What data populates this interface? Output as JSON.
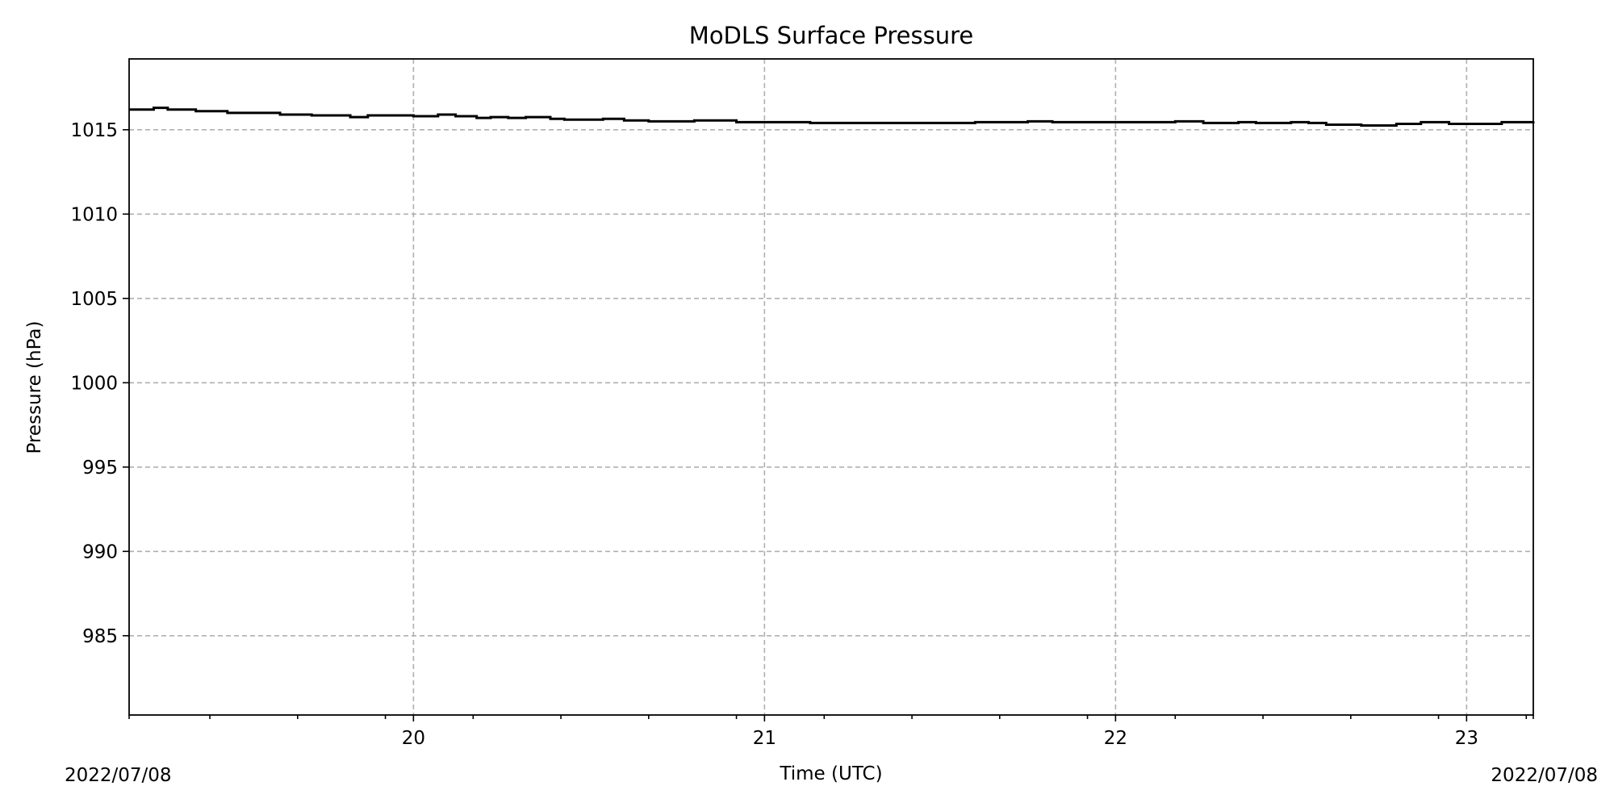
{
  "chart_data": {
    "type": "line",
    "title": "MoDLS Surface Pressure",
    "xlabel": "Time (UTC)",
    "ylabel": "Pressure (hPa)",
    "date_left": "2022/07/08",
    "date_right": "2022/07/08",
    "xlim": [
      19.19,
      23.19
    ],
    "ylim": [
      980.3,
      1019.2
    ],
    "x_ticks": [
      {
        "value": 20,
        "label": "20"
      },
      {
        "value": 21,
        "label": "21"
      },
      {
        "value": 22,
        "label": "22"
      },
      {
        "value": 23,
        "label": "23"
      }
    ],
    "x_minor_ticks": [
      19.19,
      19.42,
      19.67,
      19.92,
      20.17,
      20.42,
      20.67,
      20.92,
      21.17,
      21.42,
      21.67,
      21.92,
      22.17,
      22.42,
      22.67,
      22.92,
      23.17,
      23.19
    ],
    "y_ticks": [
      {
        "value": 985,
        "label": "985"
      },
      {
        "value": 990,
        "label": "990"
      },
      {
        "value": 995,
        "label": "995"
      },
      {
        "value": 1000,
        "label": "1000"
      },
      {
        "value": 1005,
        "label": "1005"
      },
      {
        "value": 1010,
        "label": "1010"
      },
      {
        "value": 1015,
        "label": "1015"
      }
    ],
    "grid": true,
    "line_color": "#000000",
    "series": [
      {
        "x": [
          19.19,
          19.26,
          19.3,
          19.38,
          19.47,
          19.62,
          19.71,
          19.82,
          19.87,
          20.0,
          20.07,
          20.12,
          20.18,
          20.22,
          20.27,
          20.32,
          20.39,
          20.43,
          20.54,
          20.6,
          20.67,
          20.8,
          20.92,
          21.0,
          21.13,
          21.5,
          21.6,
          21.75,
          21.82,
          22.1,
          22.17,
          22.25,
          22.35,
          22.4,
          22.5,
          22.55,
          22.6,
          22.7,
          22.8,
          22.87,
          22.95,
          23.05,
          23.1,
          23.19
        ],
        "y": [
          1016.2,
          1016.3,
          1016.2,
          1016.1,
          1016.0,
          1015.9,
          1015.85,
          1015.75,
          1015.85,
          1015.8,
          1015.9,
          1015.8,
          1015.7,
          1015.75,
          1015.7,
          1015.75,
          1015.65,
          1015.6,
          1015.65,
          1015.55,
          1015.5,
          1015.55,
          1015.45,
          1015.45,
          1015.4,
          1015.4,
          1015.45,
          1015.5,
          1015.45,
          1015.45,
          1015.5,
          1015.4,
          1015.45,
          1015.4,
          1015.45,
          1015.4,
          1015.3,
          1015.25,
          1015.35,
          1015.45,
          1015.35,
          1015.35,
          1015.45,
          1015.5
        ]
      }
    ]
  }
}
